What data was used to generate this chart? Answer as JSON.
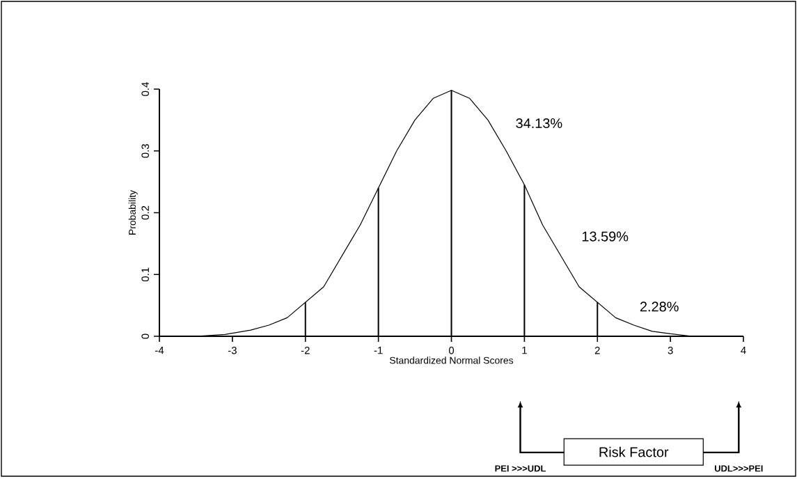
{
  "chart_data": {
    "type": "line",
    "xlabel": "Standardized Normal Scores",
    "ylabel": "Probability",
    "xlim": [
      -4,
      4
    ],
    "ylim": [
      0,
      0.4
    ],
    "xticks": [
      -4,
      -3,
      -2,
      -1,
      0,
      1,
      2,
      3,
      4
    ],
    "yticks": [
      0,
      0.1,
      0.2,
      0.3,
      0.4
    ],
    "series": [
      {
        "color": "#000000",
        "x": [
          -4,
          -3.5,
          -3.1,
          -2.75,
          -2.5,
          -2.25,
          -2,
          -1.75,
          -1.5,
          -1.25,
          -1,
          -0.75,
          -0.5,
          -0.25,
          0,
          0.25,
          0.5,
          0.75,
          1,
          1.25,
          1.5,
          1.75,
          2,
          2.25,
          2.5,
          2.75,
          3,
          3.3,
          4
        ],
        "values": [
          0,
          0,
          0.003,
          0.01,
          0.018,
          0.03,
          0.055,
          0.08,
          0.13,
          0.18,
          0.24,
          0.3,
          0.35,
          0.385,
          0.398,
          0.385,
          0.35,
          0.3,
          0.245,
          0.18,
          0.13,
          0.08,
          0.055,
          0.03,
          0.018,
          0.008,
          0.004,
          0,
          0
        ]
      },
      {
        "type": "bar",
        "color": "#000000",
        "x": [
          -2,
          -1,
          0,
          1,
          2
        ],
        "values": [
          0.055,
          0.24,
          0.398,
          0.245,
          0.055
        ]
      }
    ],
    "annotations": [
      "34.13%",
      "13.59%",
      "2.28%",
      "Risk Factor",
      "PEI >>>UDL",
      "UDL>>>PEI"
    ]
  }
}
